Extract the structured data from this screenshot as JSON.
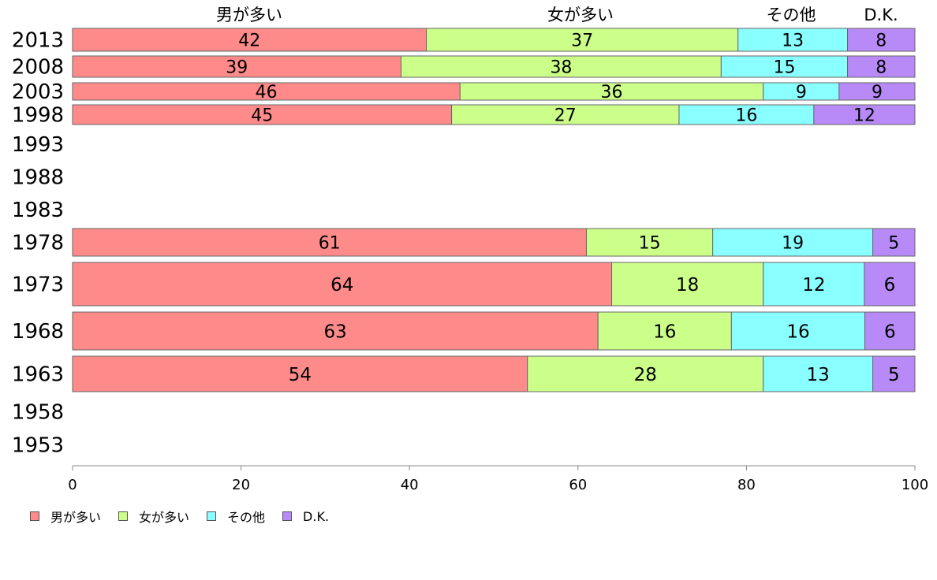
{
  "chart_data": {
    "type": "bar",
    "orientation": "horizontal",
    "stacked": true,
    "series": [
      {
        "name": "男が多い",
        "color": "#FF8A8A",
        "values": [
          42,
          39,
          46,
          45,
          null,
          null,
          null,
          61,
          64,
          63,
          54,
          null,
          null
        ]
      },
      {
        "name": "女が多い",
        "color": "#CCFF8A",
        "values": [
          37,
          38,
          36,
          27,
          null,
          null,
          null,
          15,
          18,
          16,
          28,
          null,
          null
        ]
      },
      {
        "name": "その他",
        "color": "#8AFFFF",
        "values": [
          13,
          15,
          9,
          16,
          null,
          null,
          null,
          19,
          12,
          16,
          13,
          null,
          null
        ]
      },
      {
        "name": "D.K.",
        "color": "#B88AF8",
        "values": [
          8,
          8,
          9,
          12,
          null,
          null,
          null,
          5,
          6,
          6,
          5,
          null,
          null
        ]
      }
    ],
    "categories": [
      "2013",
      "2008",
      "2003",
      "1998",
      "1993",
      "1988",
      "1983",
      "1978",
      "1973",
      "1968",
      "1963",
      "1958",
      "1953"
    ],
    "top_labels": [
      "男が多い",
      "女が多い",
      "その他",
      "D.K."
    ],
    "xlim": [
      0,
      100
    ],
    "xticks": [
      0,
      20,
      40,
      60,
      80,
      100
    ],
    "grid": false,
    "legend_position": "bottom-left"
  }
}
